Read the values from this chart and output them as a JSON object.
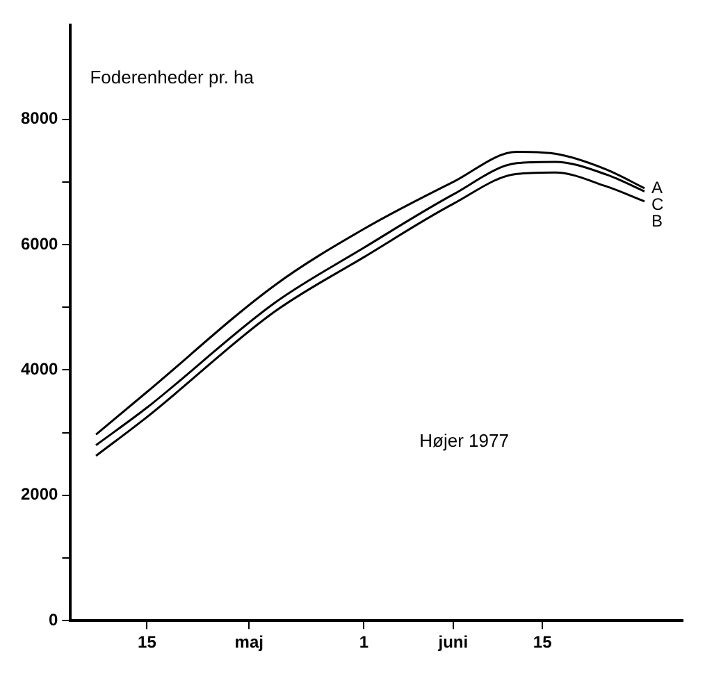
{
  "chart_data": {
    "type": "line",
    "ylabel": "Foderenheder pr. ha",
    "annotations": [
      "Højer 1977"
    ],
    "x": [
      "1977-05-11",
      "1977-05-15",
      "1977-05-25",
      "1977-06-01",
      "1977-06-08",
      "1977-06-13",
      "1977-06-16",
      "1977-06-20",
      "1977-06-23"
    ],
    "series": [
      {
        "name": "A",
        "color": "#000000",
        "values": [
          2970,
          3650,
          5350,
          6250,
          7000,
          7480,
          7450,
          7200,
          6900
        ]
      },
      {
        "name": "C",
        "color": "#000000",
        "values": [
          2800,
          3400,
          5070,
          5950,
          6800,
          7300,
          7320,
          7120,
          6850
        ]
      },
      {
        "name": "B",
        "color": "#000000",
        "values": [
          2630,
          3250,
          4930,
          5800,
          6650,
          7130,
          7150,
          6930,
          6690
        ]
      }
    ],
    "xlim": [
      "1977-05-09",
      "1977-06-26"
    ],
    "xticks": [
      {
        "value": "1977-05-15",
        "label": "15"
      },
      {
        "value": "1977-05-23",
        "label": "maj"
      },
      {
        "value": "1977-06-01",
        "label": "1"
      },
      {
        "value": "1977-06-08",
        "label": "juni"
      },
      {
        "value": "1977-06-15",
        "label": "15"
      }
    ],
    "ylim": [
      0,
      9500
    ],
    "yticks": [
      0,
      {
        "value": 1000,
        "label": null
      },
      2000,
      {
        "value": 3000,
        "label": null
      },
      4000,
      {
        "value": 5000,
        "label": null
      },
      6000,
      {
        "value": 7000,
        "label": null
      },
      8000
    ],
    "grid": false,
    "legend": false,
    "marker": "none",
    "line_style": "solid"
  }
}
